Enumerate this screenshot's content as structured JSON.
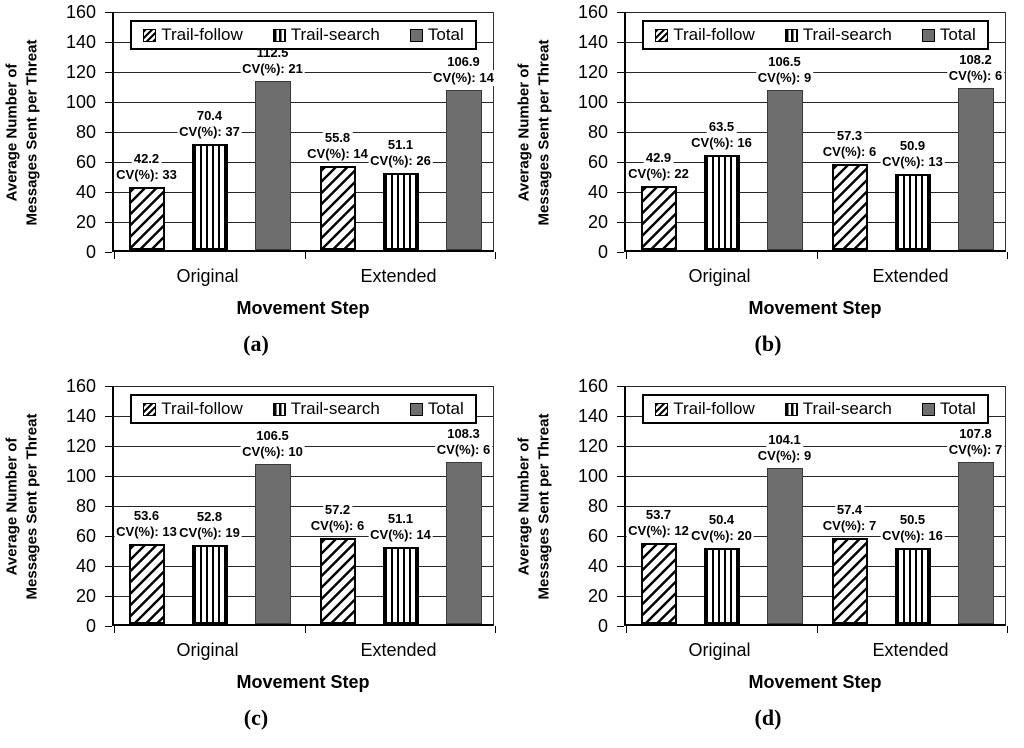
{
  "page": {
    "background": "#ffffff"
  },
  "colors": {
    "text": "#000000",
    "axis": "#000000",
    "gridline": "#262626",
    "total_bar_fill": "#6e6e6e",
    "total_bar_border": "#3a3a3a",
    "hatch": "#000000",
    "legend_border": "#000000",
    "legend_background": "#ffffff"
  },
  "chart_data": [
    {
      "caption": "(a)",
      "type": "bar",
      "ylabel": "Average Number of Messages Sent per Threat",
      "ylabel_lines": [
        "Average Number of",
        "Messages Sent per Threat"
      ],
      "xlabel": "Movement Step",
      "categories": [
        "Original",
        "Extended"
      ],
      "ylim": [
        0,
        160
      ],
      "yticks": [
        0,
        20,
        40,
        60,
        80,
        100,
        120,
        140,
        160
      ],
      "grid": true,
      "legend_position": "top-inside",
      "bar_label_format": "{value} / CV(%): {cv}",
      "series": [
        {
          "name": "Trail-follow",
          "style": "diagonal-hatch",
          "values": [
            42.2,
            55.8
          ],
          "cv_percent": [
            33,
            14
          ]
        },
        {
          "name": "Trail-search",
          "style": "vertical-hatch",
          "values": [
            70.4,
            51.1
          ],
          "cv_percent": [
            37,
            26
          ]
        },
        {
          "name": "Total",
          "style": "solid-gray",
          "values": [
            112.5,
            106.9
          ],
          "cv_percent": [
            21,
            14
          ]
        }
      ]
    },
    {
      "caption": "(b)",
      "type": "bar",
      "ylabel": "Average Number of Messages Sent per Threat",
      "ylabel_lines": [
        "Average Number of",
        "Messages Sent per Threat"
      ],
      "xlabel": "Movement Step",
      "categories": [
        "Original",
        "Extended"
      ],
      "ylim": [
        0,
        160
      ],
      "yticks": [
        0,
        20,
        40,
        60,
        80,
        100,
        120,
        140,
        160
      ],
      "grid": true,
      "legend_position": "top-inside",
      "bar_label_format": "{value} / CV(%): {cv}",
      "series": [
        {
          "name": "Trail-follow",
          "style": "diagonal-hatch",
          "values": [
            42.9,
            57.3
          ],
          "cv_percent": [
            22,
            6
          ]
        },
        {
          "name": "Trail-search",
          "style": "vertical-hatch",
          "values": [
            63.5,
            50.9
          ],
          "cv_percent": [
            16,
            13
          ]
        },
        {
          "name": "Total",
          "style": "solid-gray",
          "values": [
            106.5,
            108.2
          ],
          "cv_percent": [
            9,
            6
          ]
        }
      ]
    },
    {
      "caption": "(c)",
      "type": "bar",
      "ylabel": "Average Number of Messages Sent per Threat",
      "ylabel_lines": [
        "Average Number of",
        "Messages Sent per Threat"
      ],
      "xlabel": "Movement Step",
      "categories": [
        "Original",
        "Extended"
      ],
      "ylim": [
        0,
        160
      ],
      "yticks": [
        0,
        20,
        40,
        60,
        80,
        100,
        120,
        140,
        160
      ],
      "grid": true,
      "legend_position": "top-inside",
      "bar_label_format": "{value} / CV(%): {cv}",
      "series": [
        {
          "name": "Trail-follow",
          "style": "diagonal-hatch",
          "values": [
            53.6,
            57.2
          ],
          "cv_percent": [
            13,
            6
          ]
        },
        {
          "name": "Trail-search",
          "style": "vertical-hatch",
          "values": [
            52.8,
            51.1
          ],
          "cv_percent": [
            19,
            14
          ]
        },
        {
          "name": "Total",
          "style": "solid-gray",
          "values": [
            106.5,
            108.3
          ],
          "cv_percent": [
            10,
            6
          ]
        }
      ]
    },
    {
      "caption": "(d)",
      "type": "bar",
      "ylabel": "Average Number of Messages Sent per Threat",
      "ylabel_lines": [
        "Average Number of",
        "Messages Sent per Threat"
      ],
      "xlabel": "Movement Step",
      "categories": [
        "Original",
        "Extended"
      ],
      "ylim": [
        0,
        160
      ],
      "yticks": [
        0,
        20,
        40,
        60,
        80,
        100,
        120,
        140,
        160
      ],
      "grid": true,
      "legend_position": "top-inside",
      "bar_label_format": "{value} / CV(%): {cv}",
      "series": [
        {
          "name": "Trail-follow",
          "style": "diagonal-hatch",
          "values": [
            53.7,
            57.4
          ],
          "cv_percent": [
            12,
            7
          ]
        },
        {
          "name": "Trail-search",
          "style": "vertical-hatch",
          "values": [
            50.4,
            50.5
          ],
          "cv_percent": [
            20,
            16
          ]
        },
        {
          "name": "Total",
          "style": "solid-gray",
          "values": [
            104.1,
            107.8
          ],
          "cv_percent": [
            9,
            7
          ]
        }
      ]
    }
  ]
}
